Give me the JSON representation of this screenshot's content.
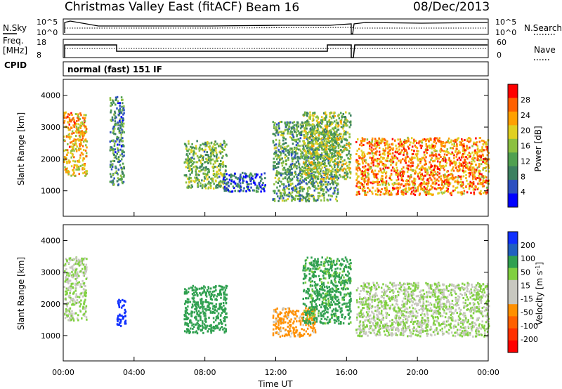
{
  "header": {
    "title": "Christmas Valley East (fitACF)",
    "beam": "Beam 16",
    "date": "08/Dec/2013"
  },
  "status_panels": {
    "nsky_label": "N.Sky",
    "nsearch_label": "N.Search",
    "freq_label_line1": "Freq.",
    "freq_label_line2": "[MHz]",
    "nave_label": "Nave",
    "cpid_label": "CPID",
    "cpid_text": "normal (fast) 151 IF",
    "noise_left_ticks": [
      "10^5",
      "10^0"
    ],
    "noise_right_ticks": [
      "10^5",
      "10^0"
    ],
    "freq_left_ticks": [
      "18",
      "8"
    ],
    "freq_right_ticks": [
      "60",
      "0"
    ]
  },
  "colors": {
    "power_scale": [
      "#0000ff",
      "#2c4fc0",
      "#3c8060",
      "#50a050",
      "#8cc040",
      "#e0d020",
      "#ffa000",
      "#ff6000",
      "#ff0000"
    ],
    "velocity_scale": [
      "#1030ff",
      "#2060c0",
      "#30a050",
      "#80d040",
      "#c8c8c0",
      "#c8c8c0",
      "#ff9000",
      "#ff6000",
      "#ff3000",
      "#ff0000"
    ],
    "ground_scatter": "#c8c8c0"
  },
  "chart_data": [
    {
      "type": "heatmap",
      "panel": "power",
      "ylabel": "Slant Range [km]",
      "yticks": [
        "1000",
        "2000",
        "3000",
        "4000"
      ],
      "ylim": [
        200,
        4500
      ],
      "xlim_hours": [
        0,
        24
      ],
      "colorbar_label": "Power [dB]",
      "colorbar_ticks": [
        "4",
        "8",
        "12",
        "16",
        "20",
        "24",
        "28"
      ],
      "colorbar_range": [
        0,
        32
      ],
      "echo_regions": [
        {
          "t": [
            0.0,
            1.3
          ],
          "r": [
            1500,
            3500
          ],
          "value": 22
        },
        {
          "t": [
            2.6,
            3.4
          ],
          "r": [
            1200,
            4000
          ],
          "value": 10
        },
        {
          "t": [
            6.8,
            9.2
          ],
          "r": [
            1100,
            2600
          ],
          "value": 14
        },
        {
          "t": [
            9.0,
            11.4
          ],
          "r": [
            1000,
            1600
          ],
          "value": 6
        },
        {
          "t": [
            11.8,
            15.5
          ],
          "r": [
            700,
            3200
          ],
          "value": 12
        },
        {
          "t": [
            13.5,
            16.2
          ],
          "r": [
            1400,
            3500
          ],
          "value": 16
        },
        {
          "t": [
            16.5,
            24.0
          ],
          "r": [
            900,
            2700
          ],
          "value": 24
        }
      ]
    },
    {
      "type": "heatmap",
      "panel": "velocity",
      "ylabel": "Slant Range [km]",
      "yticks": [
        "1000",
        "2000",
        "3000",
        "4000"
      ],
      "ylim": [
        200,
        4500
      ],
      "xlim_hours": [
        0,
        24
      ],
      "xlabel": "Time UT",
      "xticks": [
        "00:00",
        "04:00",
        "08:00",
        "12:00",
        "16:00",
        "20:00",
        "00:00"
      ],
      "colorbar_label": "Velocity [m s",
      "colorbar_label_sup": "-1",
      "colorbar_label_end": "]",
      "colorbar_ticks": [
        "200",
        "100",
        "50",
        "15",
        "-15",
        "-50",
        "-100",
        "-200"
      ],
      "echo_regions": [
        {
          "t": [
            0.0,
            1.3
          ],
          "r": [
            1500,
            3500
          ],
          "value": 0
        },
        {
          "t": [
            3.0,
            3.5
          ],
          "r": [
            1300,
            2200
          ],
          "value": 180
        },
        {
          "t": [
            6.8,
            9.2
          ],
          "r": [
            1100,
            2600
          ],
          "value": 60
        },
        {
          "t": [
            11.8,
            14.2
          ],
          "r": [
            1000,
            1900
          ],
          "value": -40
        },
        {
          "t": [
            13.5,
            16.2
          ],
          "r": [
            1400,
            3500
          ],
          "value": 40
        },
        {
          "t": [
            16.5,
            24.0
          ],
          "r": [
            1000,
            2700
          ],
          "value": 0
        }
      ]
    }
  ]
}
